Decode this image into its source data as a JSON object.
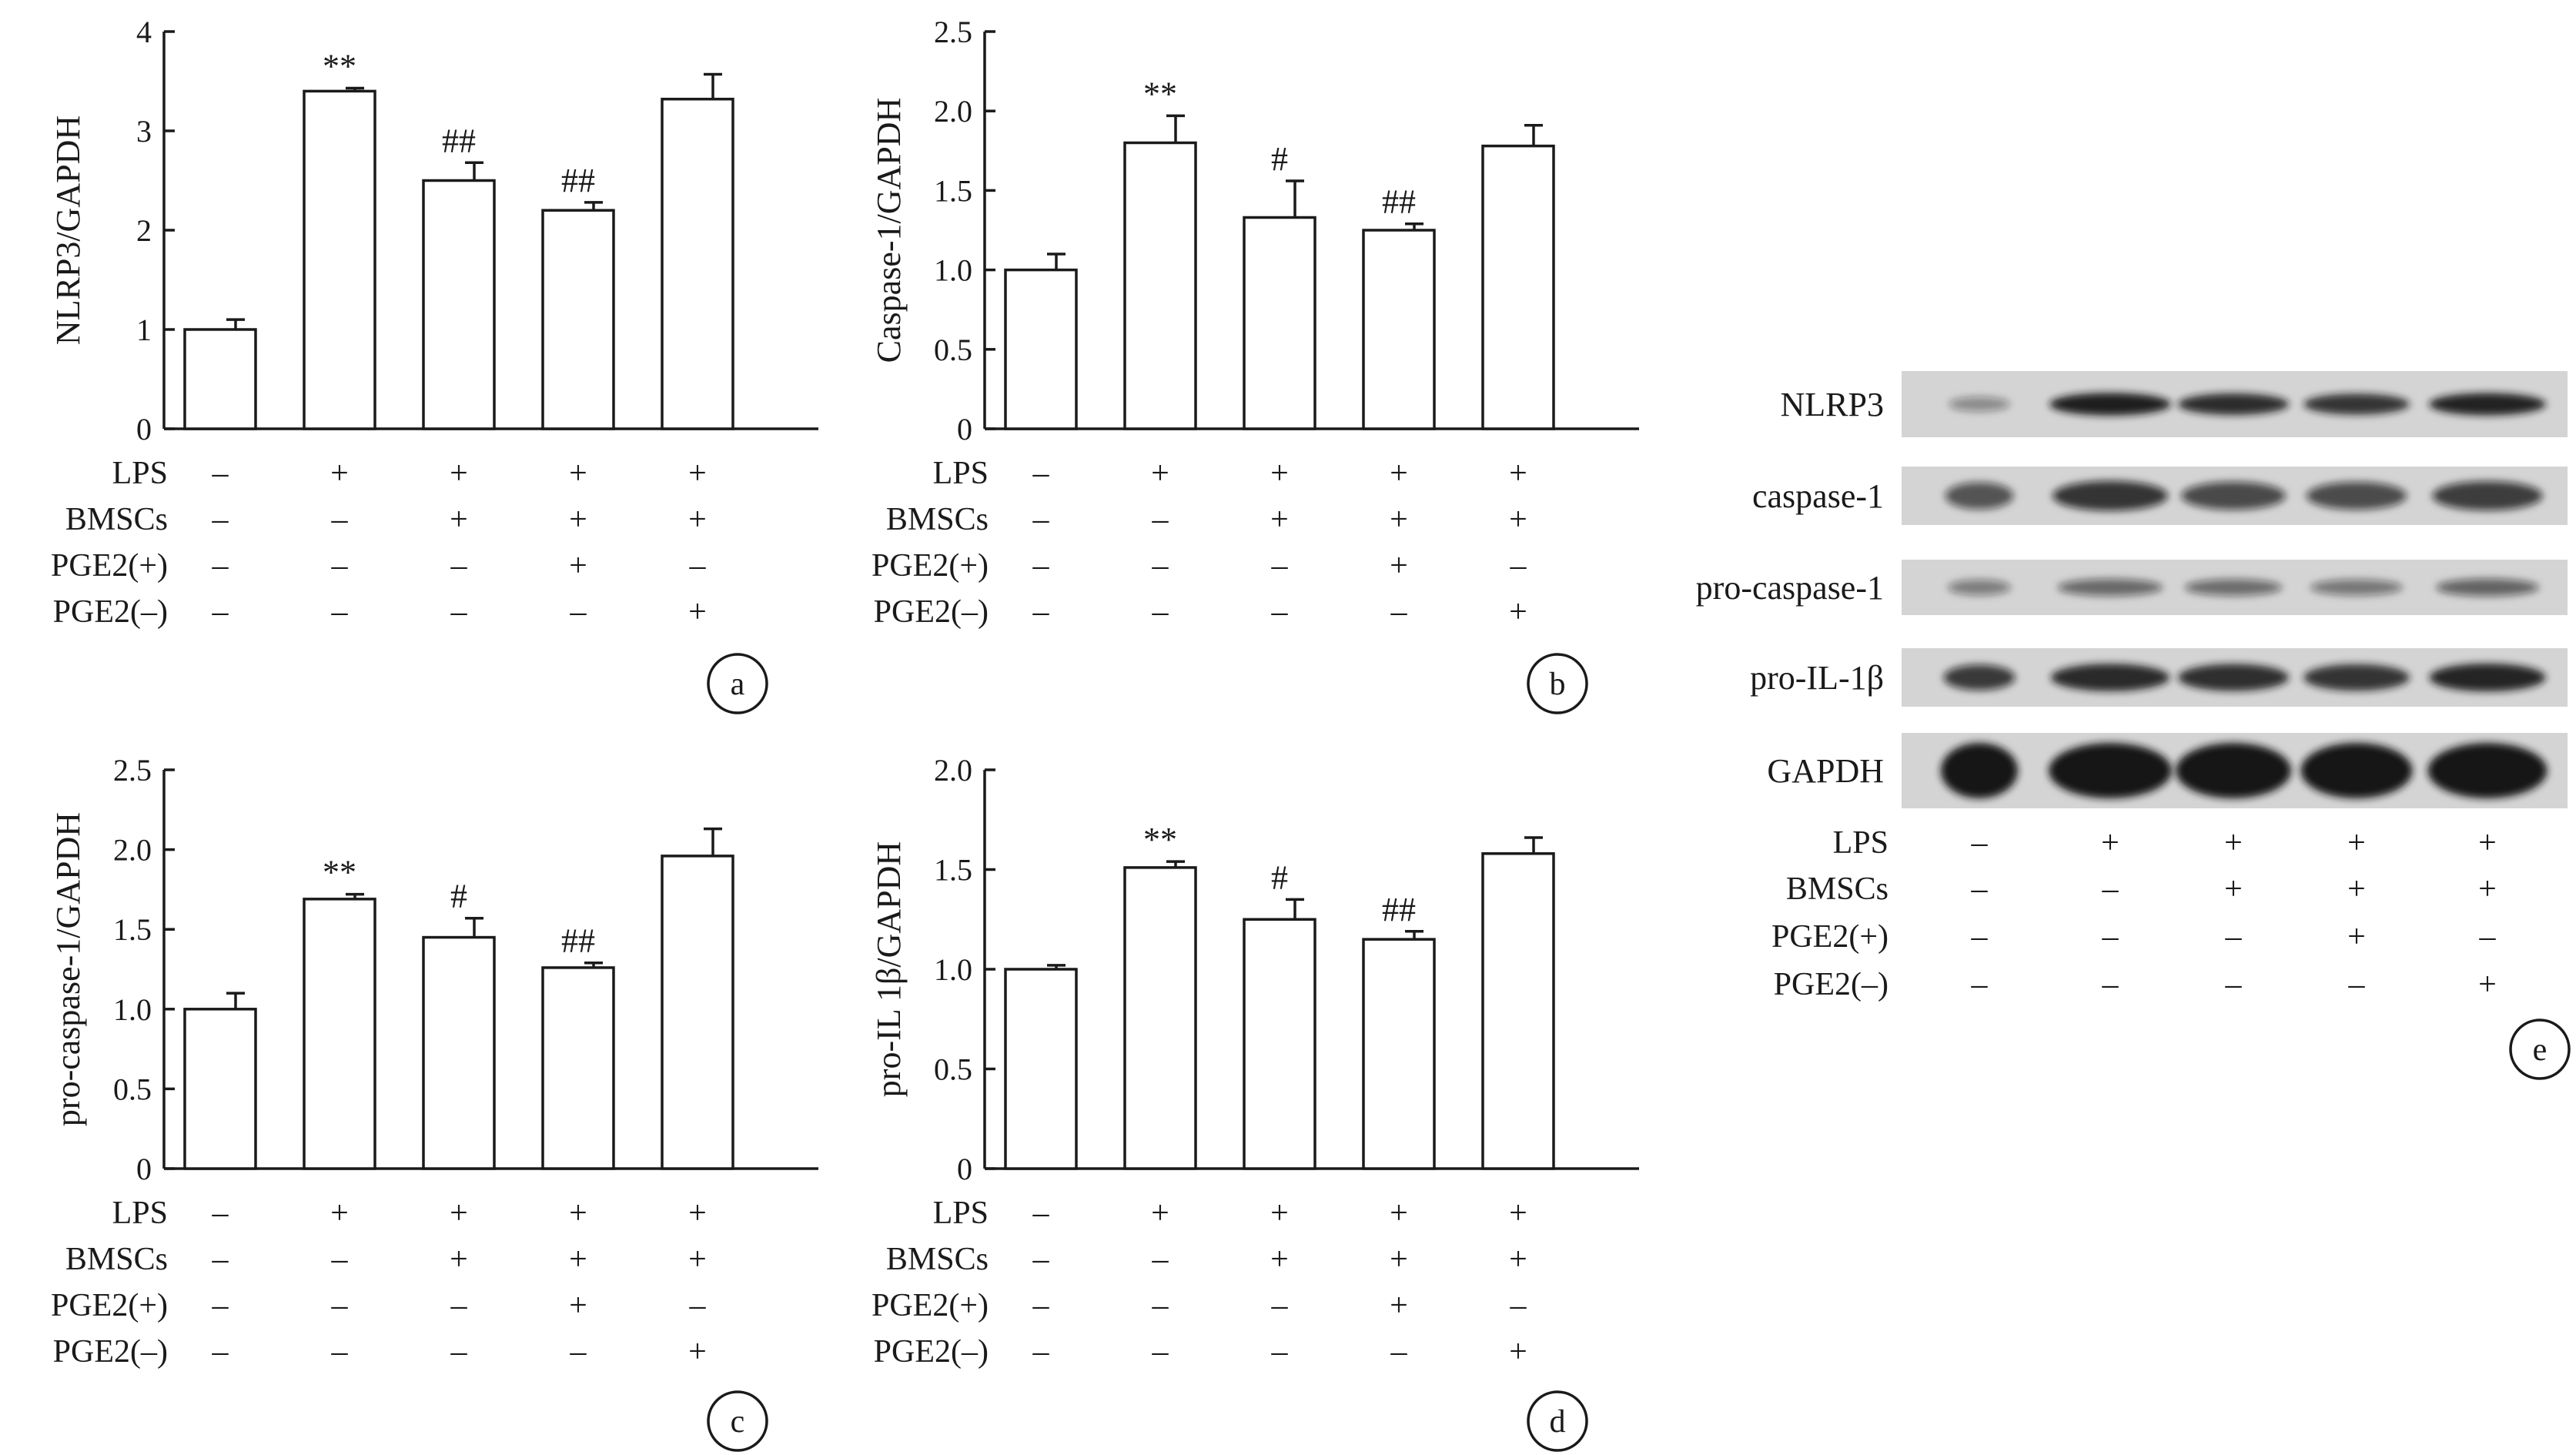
{
  "condition_rows": [
    {
      "label": "LPS",
      "signs": [
        "–",
        "+",
        "+",
        "+",
        "+"
      ]
    },
    {
      "label": "BMSCs",
      "signs": [
        "–",
        "–",
        "+",
        "+",
        "+"
      ]
    },
    {
      "label": "PGE2(+)",
      "signs": [
        "–",
        "–",
        "–",
        "+",
        "–"
      ]
    },
    {
      "label": "PGE2(–)",
      "signs": [
        "–",
        "–",
        "–",
        "–",
        "+"
      ]
    }
  ],
  "chart_data": [
    {
      "panel": "a",
      "type": "bar",
      "ylabel": "NLRP3/GAPDH",
      "ylim": [
        0,
        4
      ],
      "yticks": [
        "0",
        "1",
        "2",
        "3",
        "4"
      ],
      "values": [
        1.0,
        3.4,
        2.5,
        2.2,
        3.32
      ],
      "errors": [
        0.1,
        0.03,
        0.18,
        0.08,
        0.25
      ],
      "annotations": [
        "",
        "**",
        "##",
        "##",
        ""
      ]
    },
    {
      "panel": "b",
      "type": "bar",
      "ylabel": "Caspase-1/GAPDH",
      "ylim": [
        0,
        2.5
      ],
      "yticks": [
        "0",
        "0.5",
        "1.0",
        "1.5",
        "2.0",
        "2.5"
      ],
      "values": [
        1.0,
        1.8,
        1.33,
        1.25,
        1.78
      ],
      "errors": [
        0.1,
        0.17,
        0.23,
        0.04,
        0.13
      ],
      "annotations": [
        "",
        "**",
        "#",
        "##",
        ""
      ]
    },
    {
      "panel": "c",
      "type": "bar",
      "ylabel": "pro-caspase-1/GAPDH",
      "ylim": [
        0,
        2.5
      ],
      "yticks": [
        "0",
        "0.5",
        "1.0",
        "1.5",
        "2.0",
        "2.5"
      ],
      "values": [
        1.0,
        1.69,
        1.45,
        1.26,
        1.96
      ],
      "errors": [
        0.1,
        0.03,
        0.12,
        0.03,
        0.17
      ],
      "annotations": [
        "",
        "**",
        "#",
        "##",
        ""
      ]
    },
    {
      "panel": "d",
      "type": "bar",
      "ylabel": "pro-IL 1β/GAPDH",
      "ylim": [
        0,
        2.0
      ],
      "yticks": [
        "0",
        "0.5",
        "1.0",
        "1.5",
        "2.0"
      ],
      "values": [
        1.0,
        1.51,
        1.25,
        1.15,
        1.58
      ],
      "errors": [
        0.02,
        0.03,
        0.1,
        0.04,
        0.08
      ],
      "annotations": [
        "",
        "**",
        "#",
        "##",
        ""
      ]
    }
  ],
  "blot": {
    "panel": "e",
    "bands": [
      {
        "label": "NLRP3",
        "intensity": [
          0.18,
          0.95,
          0.85,
          0.8,
          0.92
        ]
      },
      {
        "label": "caspase-1",
        "intensity": [
          0.55,
          0.75,
          0.62,
          0.6,
          0.7
        ]
      },
      {
        "label": "pro-caspase-1",
        "intensity": [
          0.28,
          0.42,
          0.38,
          0.32,
          0.45
        ]
      },
      {
        "label": "pro-IL-1β",
        "intensity": [
          0.72,
          0.86,
          0.84,
          0.8,
          0.9
        ]
      },
      {
        "label": "GAPDH",
        "intensity": [
          1.0,
          1.0,
          1.0,
          1.0,
          1.0
        ]
      }
    ]
  },
  "colors": {
    "ink": "#1a1a1a",
    "bar_fill": "#ffffff",
    "membrane": "#d4d4d4",
    "band": "#141414"
  }
}
